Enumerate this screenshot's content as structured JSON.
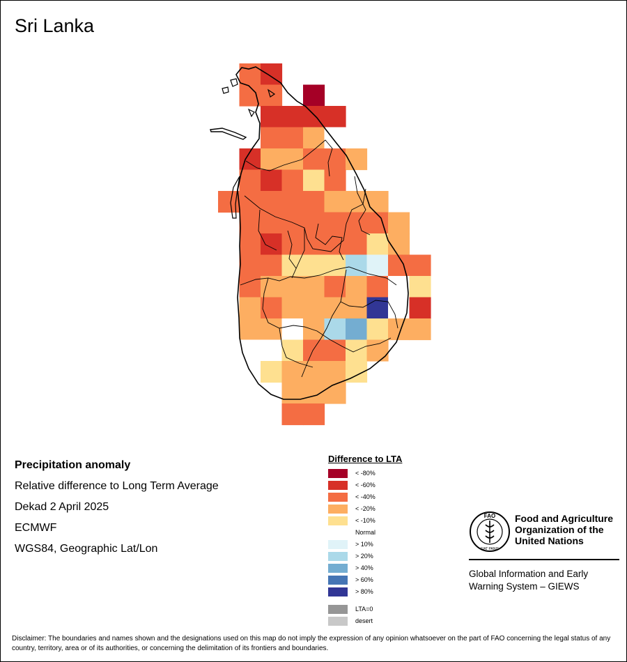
{
  "map": {
    "title": "Sri Lanka",
    "colors": {
      "lt_-80": "#a50026",
      "lt_-60": "#d73027",
      "lt_-40": "#f46d43",
      "lt_-20": "#fdae61",
      "lt_-10": "#fee090",
      "normal": "#ffffff",
      "gt_10": "#e0f3f8",
      "gt_20": "#abd9e9",
      "gt_40": "#74add1",
      "gt_60": "#4575b4",
      "gt_80": "#313695",
      "lta0": "#969696",
      "desert": "#c8c8c8"
    },
    "grid": {
      "origin_col": 0,
      "origin_row": 0,
      "rows": [
        {
          "row": 0,
          "start": 1,
          "cells": [
            "lt_-40",
            "lt_-60"
          ]
        },
        {
          "row": 1,
          "start": 1,
          "cells": [
            "lt_-40",
            "lt_-40",
            "",
            "lt_-80"
          ]
        },
        {
          "row": 2,
          "start": 2,
          "cells": [
            "lt_-60",
            "lt_-60",
            "lt_-60",
            "lt_-60"
          ]
        },
        {
          "row": 3,
          "start": 2,
          "cells": [
            "lt_-40",
            "lt_-40",
            "lt_-20",
            "normal"
          ]
        },
        {
          "row": 4,
          "start": 1,
          "cells": [
            "lt_-60",
            "lt_-20",
            "lt_-20",
            "lt_-40",
            "lt_-40",
            "lt_-20"
          ]
        },
        {
          "row": 5,
          "start": 1,
          "cells": [
            "lt_-40",
            "lt_-60",
            "lt_-40",
            "lt_-10",
            "lt_-40"
          ]
        },
        {
          "row": 6,
          "start": 0,
          "cells": [
            "lt_-40",
            "lt_-40",
            "lt_-40",
            "lt_-40",
            "lt_-40",
            "lt_-20",
            "lt_-20",
            "lt_-20"
          ]
        },
        {
          "row": 7,
          "start": 1,
          "cells": [
            "lt_-40",
            "lt_-40",
            "lt_-40",
            "lt_-40",
            "lt_-40",
            "lt_-40",
            "lt_-40",
            "lt_-20"
          ]
        },
        {
          "row": 8,
          "start": 1,
          "cells": [
            "lt_-40",
            "lt_-60",
            "lt_-40",
            "lt_-40",
            "lt_-40",
            "lt_-40",
            "lt_-10",
            "lt_-20"
          ]
        },
        {
          "row": 9,
          "start": 1,
          "cells": [
            "lt_-40",
            "lt_-40",
            "lt_-10",
            "lt_-10",
            "lt_-10",
            "gt_20",
            "gt_10",
            "lt_-40",
            "lt_-40"
          ]
        },
        {
          "row": 10,
          "start": 1,
          "cells": [
            "lt_-40",
            "lt_-20",
            "lt_-20",
            "lt_-20",
            "lt_-40",
            "lt_-20",
            "lt_-40",
            "normal",
            "lt_-10"
          ]
        },
        {
          "row": 11,
          "start": 1,
          "cells": [
            "lt_-20",
            "lt_-40",
            "lt_-20",
            "lt_-20",
            "lt_-20",
            "lt_-20",
            "gt_80",
            "normal",
            "lt_-60"
          ]
        },
        {
          "row": 12,
          "start": 1,
          "cells": [
            "lt_-20",
            "lt_-20",
            "normal",
            "lt_-20",
            "gt_20",
            "gt_40",
            "lt_-10",
            "lt_-20",
            "lt_-20"
          ]
        },
        {
          "row": 13,
          "start": 1,
          "cells": [
            "normal",
            "normal",
            "lt_-10",
            "lt_-40",
            "lt_-40",
            "lt_-10",
            "lt_-20"
          ]
        },
        {
          "row": 14,
          "start": 2,
          "cells": [
            "lt_-10",
            "lt_-20",
            "lt_-20",
            "lt_-20",
            "lt_-10"
          ]
        },
        {
          "row": 15,
          "start": 3,
          "cells": [
            "lt_-20",
            "lt_-20",
            "lt_-20"
          ]
        },
        {
          "row": 16,
          "start": 3,
          "cells": [
            "lt_-40",
            "lt_-40"
          ]
        }
      ]
    }
  },
  "info": {
    "heading": "Precipitation anomaly",
    "subtitle": "Relative difference to Long Term Average",
    "period": "Dekad 2 April 2025",
    "source": "ECMWF",
    "projection": "WGS84, Geographic Lat/Lon"
  },
  "legend": {
    "title": "Difference to LTA",
    "items": [
      {
        "label": "< -80%",
        "color": "#a50026"
      },
      {
        "label": "< -60%",
        "color": "#d73027"
      },
      {
        "label": "< -40%",
        "color": "#f46d43"
      },
      {
        "label": "< -20%",
        "color": "#fdae61"
      },
      {
        "label": "< -10%",
        "color": "#fee090"
      },
      {
        "label": "Normal",
        "color": "#ffffff"
      },
      {
        "label": "> 10%",
        "color": "#e0f3f8"
      },
      {
        "label": "> 20%",
        "color": "#abd9e9"
      },
      {
        "label": "> 40%",
        "color": "#74add1"
      },
      {
        "label": "> 60%",
        "color": "#4575b4"
      },
      {
        "label": "> 80%",
        "color": "#313695"
      }
    ],
    "extra_items": [
      {
        "label": "LTA=0",
        "color": "#969696"
      },
      {
        "label": "desert",
        "color": "#c8c8c8"
      }
    ]
  },
  "branding": {
    "fao_name_1": "Food and Agriculture",
    "fao_name_2": "Organization of the",
    "fao_name_3": "United Nations",
    "logo_text": "FAO",
    "logo_motto": "FIAT PANIS",
    "giews_1": "Global Information and Early",
    "giews_2": "Warning System – GIEWS"
  },
  "disclaimer": "Disclaimer: The boundaries and names shown and the designations used on this map do not imply the expression of any opinion whatsoever on the part of FAO concerning the legal status of any country, territory, area or of its authorities, or concerning the delimitation of its frontiers and boundaries."
}
